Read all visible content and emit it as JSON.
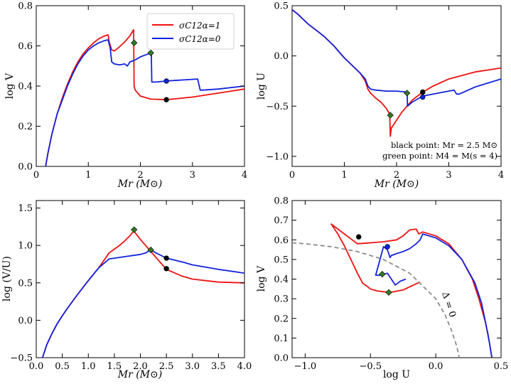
{
  "colors": {
    "red": "#ee1111",
    "blue": "#1122dd",
    "green": "#2e7d1e",
    "black": "#000000",
    "gray": "#8c8c8c"
  },
  "legend": {
    "red_label": "σC12α=1",
    "blue_label": "σC12α=0"
  },
  "annotations": {
    "black_point": "black point: Mr = 2.5 M⊙",
    "green_point": "green point: M4 = M(s = 4)",
    "delta_zero": "Δ = 0"
  },
  "chart_data": [
    {
      "type": "line",
      "title": "",
      "xlabel": "Mr (M⊙)",
      "ylabel": "log V",
      "xlim": [
        0,
        4
      ],
      "ylim": [
        0,
        0.8
      ],
      "xticks": [
        0,
        1,
        2,
        3,
        4
      ],
      "yticks": [
        0,
        0.2,
        0.4,
        0.6,
        0.8
      ],
      "xtick_labels": [
        "0",
        "1",
        "2",
        "3",
        "4"
      ],
      "ytick_labels": [
        "0.0",
        "0.2",
        "0.4",
        "0.6",
        "0.8"
      ],
      "legend_position": "top-right",
      "series": [
        {
          "name": "σC12α=1",
          "color": "red",
          "x": [
            0.18,
            0.22,
            0.3,
            0.4,
            0.5,
            0.6,
            0.7,
            0.8,
            0.9,
            1.0,
            1.1,
            1.2,
            1.3,
            1.38,
            1.4,
            1.45,
            1.5,
            1.6,
            1.7,
            1.8,
            1.87,
            1.88,
            1.9,
            2.0,
            2.2,
            2.5,
            3.0,
            3.5,
            4.0
          ],
          "y": [
            0.0,
            0.06,
            0.16,
            0.26,
            0.34,
            0.41,
            0.47,
            0.52,
            0.56,
            0.59,
            0.615,
            0.635,
            0.648,
            0.655,
            0.62,
            0.58,
            0.575,
            0.595,
            0.62,
            0.65,
            0.68,
            0.4,
            0.38,
            0.35,
            0.335,
            0.332,
            0.345,
            0.365,
            0.385
          ]
        },
        {
          "name": "σC12α=0",
          "color": "blue",
          "x": [
            0.18,
            0.22,
            0.3,
            0.4,
            0.5,
            0.6,
            0.7,
            0.8,
            0.9,
            1.0,
            1.1,
            1.2,
            1.3,
            1.38,
            1.42,
            1.45,
            1.5,
            1.6,
            1.7,
            1.75,
            1.8,
            1.9,
            2.0,
            2.1,
            2.21,
            2.22,
            2.3,
            2.5,
            2.8,
            3.1,
            3.15,
            3.2,
            3.5,
            4.0
          ],
          "y": [
            0.0,
            0.06,
            0.16,
            0.26,
            0.33,
            0.4,
            0.46,
            0.51,
            0.55,
            0.58,
            0.6,
            0.615,
            0.625,
            0.63,
            0.59,
            0.52,
            0.51,
            0.505,
            0.51,
            0.5,
            0.52,
            0.53,
            0.545,
            0.555,
            0.565,
            0.42,
            0.42,
            0.425,
            0.43,
            0.435,
            0.38,
            0.38,
            0.385,
            0.4
          ]
        }
      ],
      "markers": [
        {
          "x": 1.88,
          "y": 0.615,
          "color": "green",
          "shape": "diamond"
        },
        {
          "x": 2.2,
          "y": 0.565,
          "color": "green",
          "shape": "diamond"
        },
        {
          "x": 2.5,
          "y": 0.425,
          "color": "blue",
          "shape": "circle"
        },
        {
          "x": 2.5,
          "y": 0.332,
          "color": "black",
          "shape": "circle"
        }
      ]
    },
    {
      "type": "line",
      "title": "",
      "xlabel": "Mr (M⊙)",
      "ylabel": "log U",
      "xlim": [
        0,
        4
      ],
      "ylim": [
        -1.1,
        0.5
      ],
      "xticks": [
        0,
        1,
        2,
        3,
        4
      ],
      "yticks": [
        -1.0,
        -0.5,
        0.0,
        0.5
      ],
      "xtick_labels": [
        "0",
        "1",
        "2",
        "3",
        "4"
      ],
      "ytick_labels": [
        "−1.0",
        "−0.5",
        "0.0",
        "0.5"
      ],
      "series": [
        {
          "name": "σC12α=1",
          "color": "red",
          "x": [
            0.0,
            0.1,
            0.2,
            0.3,
            0.4,
            0.5,
            0.6,
            0.7,
            0.8,
            0.9,
            1.0,
            1.1,
            1.2,
            1.3,
            1.4,
            1.45,
            1.5,
            1.6,
            1.7,
            1.8,
            1.87,
            1.88,
            1.9,
            2.0,
            2.1,
            2.2,
            2.3,
            2.4,
            2.5,
            2.7,
            3.0,
            3.5,
            4.0
          ],
          "y": [
            0.46,
            0.42,
            0.37,
            0.32,
            0.28,
            0.24,
            0.2,
            0.15,
            0.1,
            0.04,
            -0.02,
            -0.07,
            -0.12,
            -0.17,
            -0.25,
            -0.33,
            -0.37,
            -0.42,
            -0.46,
            -0.52,
            -0.58,
            -0.8,
            -0.72,
            -0.64,
            -0.56,
            -0.5,
            -0.44,
            -0.4,
            -0.36,
            -0.3,
            -0.23,
            -0.16,
            -0.12
          ]
        },
        {
          "name": "σC12α=0",
          "color": "blue",
          "x": [
            0.0,
            0.1,
            0.2,
            0.3,
            0.4,
            0.5,
            0.6,
            0.7,
            0.8,
            0.9,
            1.0,
            1.1,
            1.2,
            1.3,
            1.4,
            1.45,
            1.5,
            1.6,
            1.8,
            2.0,
            2.2,
            2.21,
            2.3,
            2.4,
            2.5,
            2.8,
            3.1,
            3.15,
            3.2,
            3.5,
            4.0
          ],
          "y": [
            0.46,
            0.42,
            0.37,
            0.32,
            0.28,
            0.24,
            0.2,
            0.15,
            0.1,
            0.04,
            -0.02,
            -0.07,
            -0.12,
            -0.17,
            -0.23,
            -0.3,
            -0.33,
            -0.34,
            -0.35,
            -0.35,
            -0.36,
            -0.5,
            -0.46,
            -0.43,
            -0.4,
            -0.37,
            -0.34,
            -0.38,
            -0.38,
            -0.31,
            -0.23
          ]
        }
      ],
      "markers": [
        {
          "x": 1.88,
          "y": -0.59,
          "color": "green",
          "shape": "diamond"
        },
        {
          "x": 2.2,
          "y": -0.37,
          "color": "green",
          "shape": "diamond"
        },
        {
          "x": 2.5,
          "y": -0.36,
          "color": "black",
          "shape": "circle"
        },
        {
          "x": 2.5,
          "y": -0.41,
          "color": "blue",
          "shape": "circle"
        }
      ]
    },
    {
      "type": "line",
      "title": "",
      "xlabel": "Mr (M⊙)",
      "ylabel": "log (V/U)",
      "xlim": [
        0,
        4
      ],
      "ylim": [
        -0.5,
        1.6
      ],
      "xticks": [
        0.0,
        0.5,
        1.0,
        1.5,
        2.0,
        2.5,
        3.0,
        3.5,
        4.0
      ],
      "yticks": [
        -0.5,
        0.0,
        0.5,
        1.0,
        1.5
      ],
      "xtick_labels": [
        "0.0",
        "0.5",
        "1.0",
        "1.5",
        "2.0",
        "2.5",
        "3.0",
        "3.5",
        "4.0"
      ],
      "ytick_labels": [
        "−0.5",
        "0.0",
        "0.5",
        "1.0",
        "1.5"
      ],
      "series": [
        {
          "name": "σC12α=1",
          "color": "red",
          "x": [
            0.12,
            0.2,
            0.3,
            0.4,
            0.5,
            0.6,
            0.8,
            1.0,
            1.2,
            1.4,
            1.5,
            1.6,
            1.7,
            1.8,
            1.88,
            1.9,
            2.0,
            2.2,
            2.5,
            2.8,
            3.0,
            3.5,
            4.0
          ],
          "y": [
            -0.5,
            -0.33,
            -0.18,
            -0.05,
            0.06,
            0.16,
            0.35,
            0.53,
            0.7,
            0.9,
            0.95,
            1.0,
            1.06,
            1.13,
            1.2,
            1.17,
            1.08,
            0.92,
            0.68,
            0.59,
            0.55,
            0.51,
            0.5
          ]
        },
        {
          "name": "σC12α=0",
          "color": "blue",
          "x": [
            0.12,
            0.2,
            0.3,
            0.4,
            0.5,
            0.6,
            0.8,
            1.0,
            1.2,
            1.4,
            1.6,
            1.8,
            2.0,
            2.1,
            2.2,
            2.3,
            2.5,
            2.8,
            3.0,
            3.5,
            4.0
          ],
          "y": [
            -0.5,
            -0.33,
            -0.18,
            -0.05,
            0.06,
            0.16,
            0.35,
            0.53,
            0.7,
            0.82,
            0.84,
            0.86,
            0.88,
            0.9,
            0.94,
            0.9,
            0.83,
            0.78,
            0.74,
            0.68,
            0.63
          ]
        }
      ],
      "markers": [
        {
          "x": 1.88,
          "y": 1.21,
          "color": "green",
          "shape": "diamond"
        },
        {
          "x": 2.2,
          "y": 0.94,
          "color": "green",
          "shape": "diamond"
        },
        {
          "x": 2.5,
          "y": 0.83,
          "color": "black",
          "shape": "circle"
        },
        {
          "x": 2.5,
          "y": 0.69,
          "color": "black",
          "shape": "circle"
        }
      ]
    },
    {
      "type": "line",
      "title": "",
      "xlabel": "log U",
      "ylabel": "log V",
      "xlim": [
        -1.1,
        0.5
      ],
      "ylim": [
        0,
        0.8
      ],
      "xticks": [
        -1.0,
        -0.5,
        0.0,
        0.5
      ],
      "yticks": [
        0,
        0.1,
        0.2,
        0.3,
        0.4,
        0.5,
        0.6,
        0.7,
        0.8
      ],
      "xtick_labels": [
        "−1.0",
        "−0.5",
        "0.0",
        "0.5"
      ],
      "ytick_labels": [
        "0.0",
        "0.1",
        "0.2",
        "0.3",
        "0.4",
        "0.5",
        "0.6",
        "0.7",
        "0.8"
      ],
      "series": [
        {
          "name": "σC12α=1",
          "color": "red",
          "x": [
            -0.12,
            -0.25,
            -0.35,
            -0.45,
            -0.5,
            -0.56,
            -0.6,
            -0.65,
            -0.7,
            -0.75,
            -0.8,
            -0.6,
            -0.4,
            -0.3,
            -0.25,
            -0.2,
            -0.15,
            -0.13,
            -0.1,
            0.0,
            0.1,
            0.2,
            0.28,
            0.33,
            0.38,
            0.41,
            0.43
          ],
          "y": [
            0.385,
            0.345,
            0.332,
            0.34,
            0.35,
            0.38,
            0.43,
            0.5,
            0.57,
            0.63,
            0.68,
            0.58,
            0.59,
            0.6,
            0.62,
            0.65,
            0.655,
            0.63,
            0.64,
            0.62,
            0.58,
            0.5,
            0.4,
            0.3,
            0.18,
            0.08,
            0.0
          ]
        },
        {
          "name": "σC12α=0",
          "color": "blue",
          "x": [
            -0.23,
            -0.27,
            -0.31,
            -0.37,
            -0.4,
            -0.43,
            -0.46,
            -0.4,
            -0.37,
            -0.35,
            -0.34,
            -0.3,
            -0.25,
            -0.2,
            -0.15,
            -0.12,
            -0.1,
            -0.05,
            0.0,
            0.1,
            0.2,
            0.3,
            0.35,
            0.4,
            0.43
          ],
          "y": [
            0.4,
            0.39,
            0.37,
            0.43,
            0.425,
            0.42,
            0.42,
            0.565,
            0.55,
            0.51,
            0.52,
            0.53,
            0.54,
            0.555,
            0.58,
            0.6,
            0.63,
            0.62,
            0.61,
            0.57,
            0.5,
            0.38,
            0.28,
            0.12,
            0.0
          ]
        },
        {
          "name": "Δ=0",
          "color": "gray",
          "style": "dashed",
          "x": [
            -1.1,
            -1.0,
            -0.8,
            -0.6,
            -0.4,
            -0.2,
            0.0,
            0.07,
            0.12,
            0.16,
            0.18
          ],
          "y": [
            0.585,
            0.58,
            0.565,
            0.54,
            0.5,
            0.43,
            0.3,
            0.22,
            0.14,
            0.06,
            0.0
          ]
        }
      ],
      "markers": [
        {
          "x": -0.59,
          "y": 0.615,
          "color": "black",
          "shape": "circle"
        },
        {
          "x": -0.37,
          "y": 0.565,
          "color": "blue",
          "shape": "circle"
        },
        {
          "x": -0.41,
          "y": 0.425,
          "color": "green",
          "shape": "diamond"
        },
        {
          "x": -0.36,
          "y": 0.332,
          "color": "green",
          "shape": "diamond"
        }
      ]
    }
  ]
}
